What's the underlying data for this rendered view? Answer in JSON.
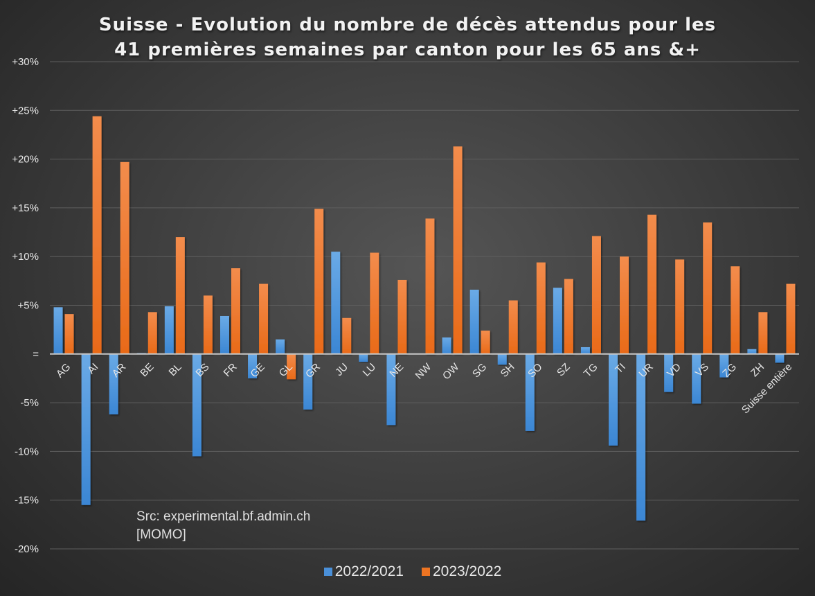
{
  "chart_data": {
    "type": "bar",
    "title_lines": [
      "Suisse - Evolution du nombre de décès attendus pour les",
      "41 premières semaines par canton pour les 65 ans &+"
    ],
    "xlabel": "",
    "ylabel": "",
    "ylim": [
      -20,
      30
    ],
    "yticks": [
      30,
      25,
      20,
      15,
      10,
      5,
      0,
      -5,
      -10,
      -15,
      -20
    ],
    "ytick_labels": [
      "+30%",
      "+25%",
      "+20%",
      "+15%",
      "+10%",
      "+5%",
      "=",
      "-5%",
      "-10%",
      "-15%",
      "-20%"
    ],
    "grid": true,
    "legend_position": "bottom",
    "categories": [
      "AG",
      "AI",
      "AR",
      "BE",
      "BL",
      "BS",
      "FR",
      "GE",
      "GL",
      "GR",
      "JU",
      "LU",
      "NE",
      "NW",
      "OW",
      "SG",
      "SH",
      "SO",
      "SZ",
      "TG",
      "TI",
      "UR",
      "VD",
      "VS",
      "ZG",
      "ZH",
      "Suisse entière"
    ],
    "series": [
      {
        "name": "2022/2021",
        "color": "#4a90d9",
        "values": [
          4.8,
          -15.5,
          -6.2,
          0.1,
          4.9,
          -10.5,
          3.9,
          -2.5,
          1.5,
          -5.7,
          10.5,
          -0.8,
          -7.3,
          0.0,
          1.7,
          6.6,
          -1.1,
          -7.9,
          6.8,
          0.7,
          -9.4,
          -17.1,
          -3.9,
          -5.1,
          -2.4,
          0.5,
          -0.9
        ]
      },
      {
        "name": "2023/2022",
        "color": "#ed7422",
        "values": [
          4.1,
          24.4,
          19.7,
          4.3,
          12.0,
          6.0,
          8.8,
          7.2,
          -2.6,
          14.9,
          3.7,
          10.4,
          7.6,
          13.9,
          21.3,
          2.4,
          5.5,
          9.4,
          7.7,
          12.1,
          10.0,
          14.3,
          9.7,
          13.5,
          9.0,
          4.3,
          7.2
        ]
      }
    ],
    "annotations": [
      "Src: experimental.bf.admin.ch",
      "[MOMO]"
    ]
  }
}
